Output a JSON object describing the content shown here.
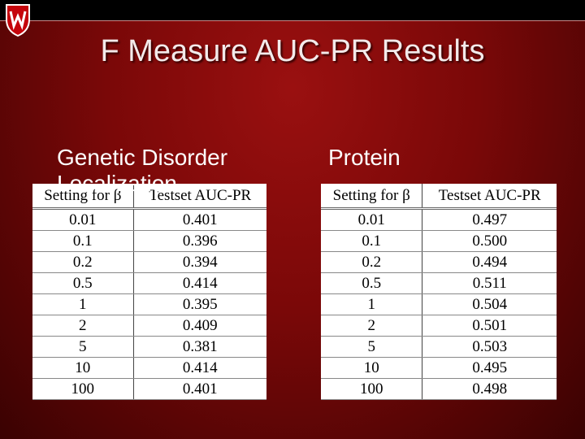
{
  "title": "F Measure AUC-PR Results",
  "sections": [
    {
      "heading": "Genetic Disorder Localization",
      "columns": [
        "Setting for β",
        "Testset AUC-PR"
      ],
      "rows": [
        [
          "0.01",
          "0.401"
        ],
        [
          "0.1",
          "0.396"
        ],
        [
          "0.2",
          "0.394"
        ],
        [
          "0.5",
          "0.414"
        ],
        [
          "1",
          "0.395"
        ],
        [
          "2",
          "0.409"
        ],
        [
          "5",
          "0.381"
        ],
        [
          "10",
          "0.414"
        ],
        [
          "100",
          "0.401"
        ]
      ]
    },
    {
      "heading": "Protein",
      "columns": [
        "Setting for β",
        "Testset AUC-PR"
      ],
      "rows": [
        [
          "0.01",
          "0.497"
        ],
        [
          "0.1",
          "0.500"
        ],
        [
          "0.2",
          "0.494"
        ],
        [
          "0.5",
          "0.511"
        ],
        [
          "1",
          "0.504"
        ],
        [
          "2",
          "0.501"
        ],
        [
          "5",
          "0.503"
        ],
        [
          "10",
          "0.495"
        ],
        [
          "100",
          "0.498"
        ]
      ]
    }
  ]
}
